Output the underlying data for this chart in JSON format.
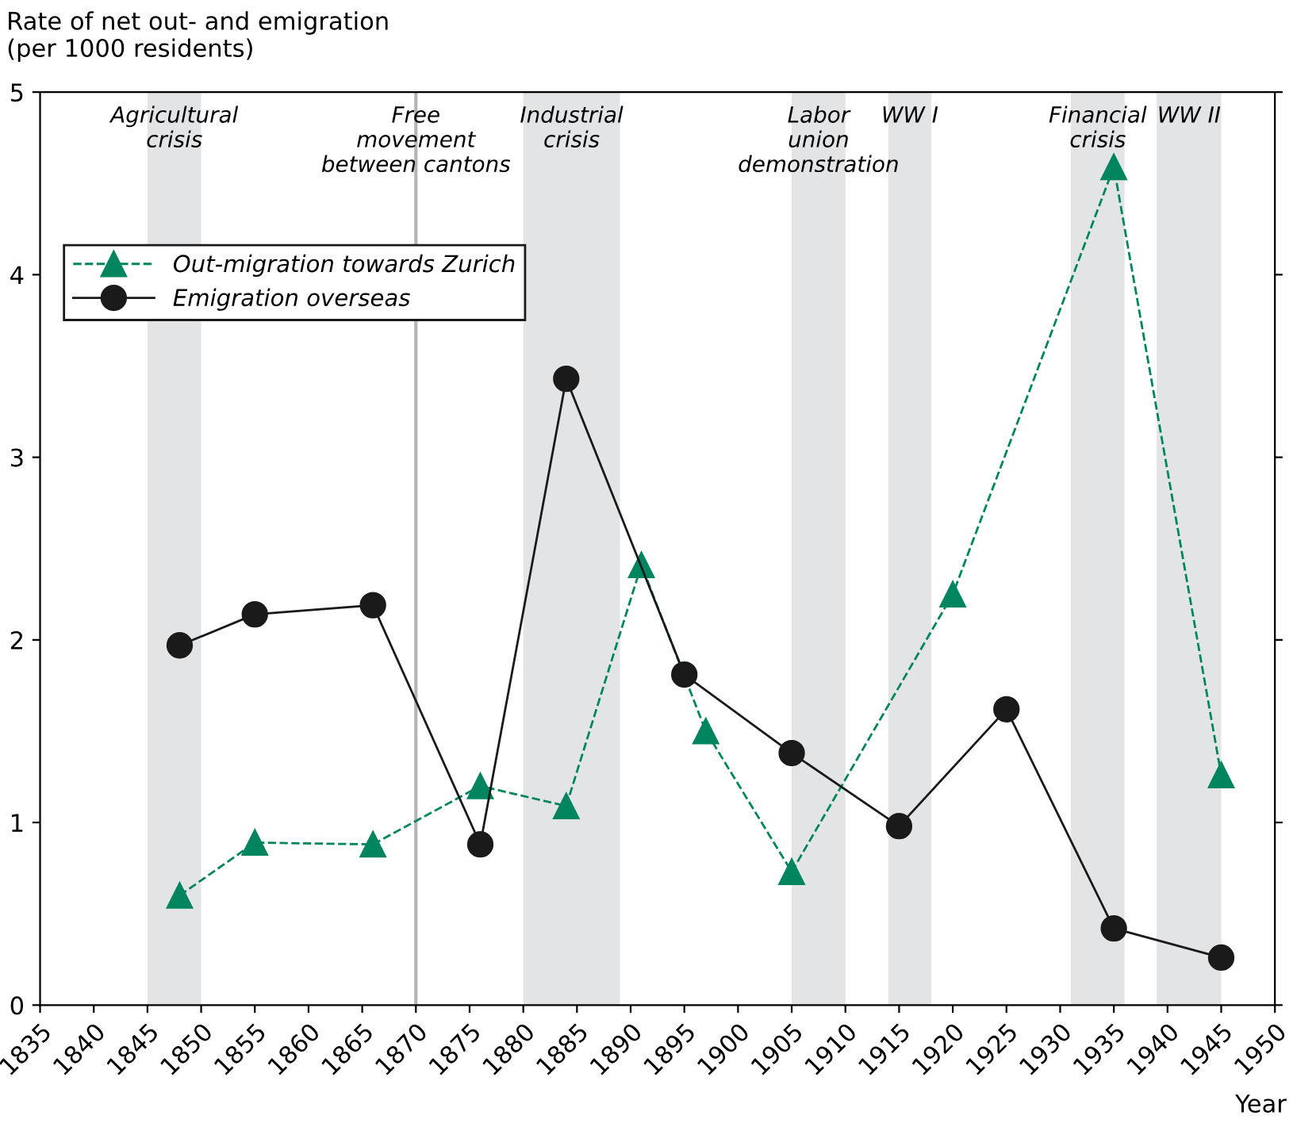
{
  "chart_data": {
    "type": "line",
    "ylabel": "Rate of net out- and emigration\n(per 1000 residents)",
    "xlabel": "Year",
    "xlim": [
      1835,
      1950
    ],
    "xticks": [
      1835,
      1840,
      1845,
      1850,
      1855,
      1860,
      1865,
      1870,
      1875,
      1880,
      1885,
      1890,
      1895,
      1900,
      1905,
      1910,
      1915,
      1920,
      1925,
      1930,
      1935,
      1940,
      1945,
      1950
    ],
    "ylim": [
      0,
      5
    ],
    "yticks": [
      0,
      1,
      2,
      3,
      4,
      5
    ],
    "grid": false,
    "legend": "top left",
    "series": [
      {
        "name": "Out-migration towards Zurich",
        "color": "#00855f",
        "marker": "triangle",
        "line_style": "dashed",
        "x": [
          1848,
          1855,
          1866,
          1876,
          1884,
          1891,
          1897,
          1905,
          1920,
          1935,
          1945
        ],
        "values": [
          0.6,
          0.89,
          0.88,
          1.2,
          1.09,
          2.41,
          1.5,
          0.73,
          2.25,
          4.59,
          1.26
        ]
      },
      {
        "name": "Emigration overseas",
        "color": "#1a1a1a",
        "marker": "circle",
        "line_style": "solid",
        "x": [
          1848,
          1855,
          1866,
          1876,
          1884,
          1895,
          1905,
          1915,
          1925,
          1935,
          1945
        ],
        "values": [
          1.97,
          2.14,
          2.19,
          0.88,
          3.43,
          1.81,
          1.38,
          0.98,
          1.62,
          0.42,
          0.26
        ]
      }
    ],
    "bands": [
      {
        "axis": "x",
        "from": 1845,
        "to": 1850,
        "label": "Agricultural\ncrisis",
        "color": "#e3e4e6"
      },
      {
        "axis": "x",
        "from": 1880,
        "to": 1889,
        "label": "Industrial\ncrisis",
        "color": "#e3e4e6"
      },
      {
        "axis": "x",
        "from": 1905,
        "to": 1910,
        "label": "Labor\nunion\ndemonstration",
        "color": "#e3e4e6"
      },
      {
        "axis": "x",
        "from": 1914,
        "to": 1918,
        "label": "WW I",
        "color": "#e3e4e6"
      },
      {
        "axis": "x",
        "from": 1931,
        "to": 1936,
        "label": "Financial\ncrisis",
        "color": "#e3e4e6"
      },
      {
        "axis": "x",
        "from": 1939,
        "to": 1945,
        "label": "WW II",
        "color": "#e3e4e6"
      }
    ],
    "ref_lines": [
      {
        "axis": "x",
        "value": 1870,
        "label": "Free\nmovement\nbetween cantons",
        "color": "#b5b5b5",
        "line_style": "solid"
      }
    ]
  }
}
